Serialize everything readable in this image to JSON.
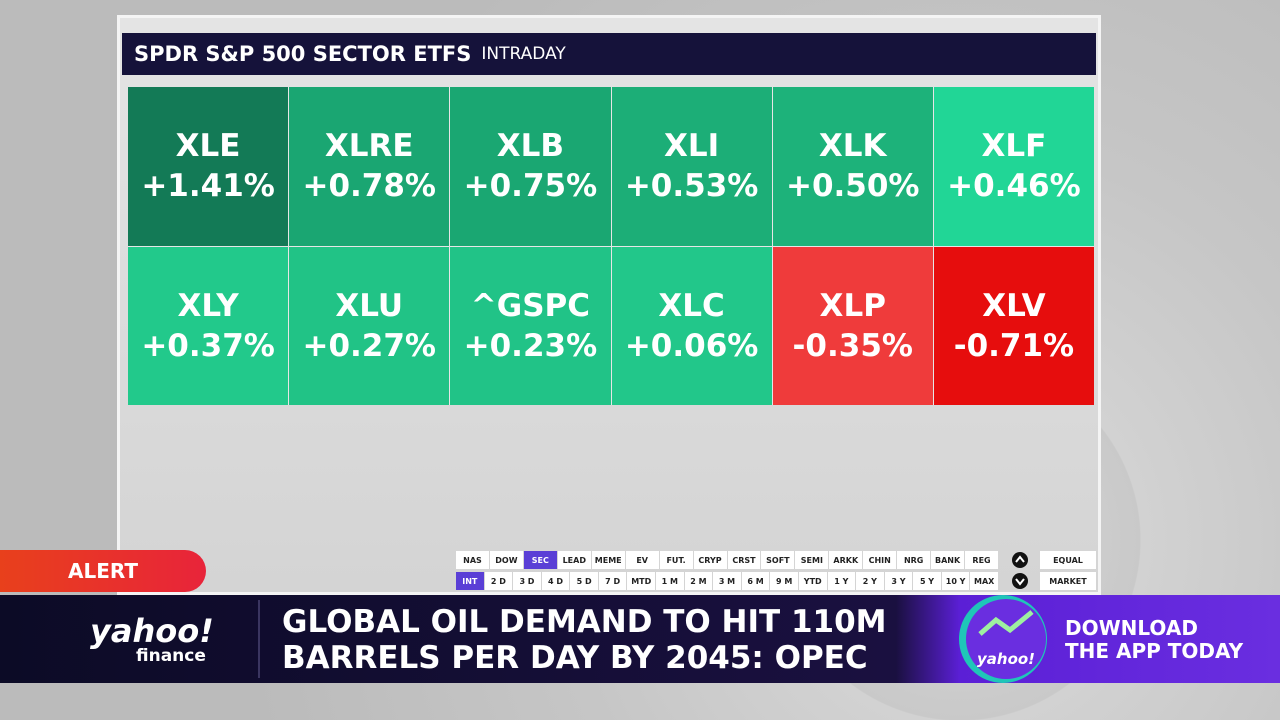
{
  "header": {
    "title": "SPDR S&P 500 SECTOR ETFS",
    "subtitle": "INTRADAY"
  },
  "tiles": [
    {
      "ticker": "XLE",
      "change": "+1.41%",
      "color": "#137a56"
    },
    {
      "ticker": "XLRE",
      "change": "+0.78%",
      "color": "#1aa672"
    },
    {
      "ticker": "XLB",
      "change": "+0.75%",
      "color": "#1aa772"
    },
    {
      "ticker": "XLI",
      "change": "+0.53%",
      "color": "#1cae77"
    },
    {
      "ticker": "XLK",
      "change": "+0.50%",
      "color": "#1db27a"
    },
    {
      "ticker": "XLF",
      "change": "+0.46%",
      "color": "#21d696"
    },
    {
      "ticker": "XLY",
      "change": "+0.37%",
      "color": "#22c98b"
    },
    {
      "ticker": "XLU",
      "change": "+0.27%",
      "color": "#21c386"
    },
    {
      "ticker": "^GSPC",
      "change": "+0.23%",
      "color": "#21c387"
    },
    {
      "ticker": "XLC",
      "change": "+0.06%",
      "color": "#22c78a"
    },
    {
      "ticker": "XLP",
      "change": "-0.35%",
      "color": "#ef3b3b"
    },
    {
      "ticker": "XLV",
      "change": "-0.71%",
      "color": "#e60d0d"
    }
  ],
  "controls": {
    "groups": [
      "NAS",
      "DOW",
      "SEC",
      "LEAD",
      "MEME",
      "EV",
      "FUT.",
      "CRYP",
      "CRST",
      "SOFT",
      "SEMI",
      "ARKK",
      "CHIN",
      "NRG",
      "BANK",
      "REG"
    ],
    "ranges": [
      "INT",
      "2 D",
      "3 D",
      "4 D",
      "5 D",
      "7 D",
      "MTD",
      "1 M",
      "2 M",
      "3 M",
      "6 M",
      "9 M",
      "YTD",
      "1 Y",
      "2 Y",
      "3 Y",
      "5 Y",
      "10 Y",
      "MAX"
    ],
    "weighting": [
      "EQUAL",
      "MARKET"
    ]
  },
  "lower_third": {
    "alert": "ALERT",
    "brand": "yahoo!",
    "brand_sub": "finance",
    "headline": [
      "GLOBAL OIL DEMAND TO HIT 110M",
      "BARRELS PER DAY BY 2045: OPEC"
    ],
    "promo": [
      "DOWNLOAD",
      "THE APP TODAY"
    ],
    "app_icon": "yahoo!"
  }
}
